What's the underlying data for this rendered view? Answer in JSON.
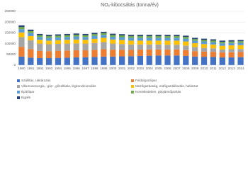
{
  "chart_data": {
    "type": "stacked_bar",
    "title": "NOₓ-kibocsátás (tonna/év)",
    "categories": [
      "1990",
      "1991",
      "1992",
      "1993",
      "1994",
      "1995",
      "1996",
      "1997",
      "1998",
      "1999",
      "2000",
      "2001",
      "2002",
      "2003",
      "2004",
      "2005",
      "2006",
      "2007",
      "2008",
      "2009",
      "2010",
      "2011",
      "2012",
      "2013",
      "2014"
    ],
    "series": [
      {
        "name": "Szállítás, raktározás",
        "color": "#4472c4",
        "values": [
          40000,
          35000,
          33000,
          33000,
          34000,
          35000,
          36000,
          37000,
          38000,
          40000,
          40000,
          41000,
          42000,
          43000,
          44000,
          45000,
          45000,
          45000,
          43000,
          40000,
          39000,
          38000,
          36000,
          36000,
          37000
        ]
      },
      {
        "name": "Feldolgozóipar",
        "color": "#ed7d31",
        "values": [
          45000,
          40000,
          33000,
          32000,
          33000,
          33000,
          33000,
          32000,
          33000,
          34000,
          32000,
          30000,
          29000,
          29000,
          29000,
          28000,
          28000,
          28000,
          27000,
          25000,
          24000,
          24000,
          23000,
          24000,
          24000
        ]
      },
      {
        "name": "Villamosenergia-, gáz-, gőzellátás, légkondicionálás",
        "color": "#a5a5a5",
        "values": [
          45000,
          40000,
          34000,
          32000,
          32000,
          32000,
          32000,
          31000,
          32000,
          33000,
          28000,
          27000,
          25000,
          24000,
          23000,
          23000,
          22000,
          22000,
          21000,
          19000,
          17000,
          16000,
          14000,
          14000,
          14000
        ]
      },
      {
        "name": "Mezőgazdaság, erdőgazdálkodás, halászat",
        "color": "#ffc000",
        "values": [
          22000,
          20000,
          18000,
          17000,
          17000,
          18000,
          18000,
          18000,
          19000,
          20000,
          19000,
          19000,
          18000,
          18000,
          18000,
          18000,
          19000,
          19000,
          19000,
          18000,
          18000,
          18000,
          17000,
          18000,
          18000
        ]
      },
      {
        "name": "Építőipar",
        "color": "#5b9bd5",
        "values": [
          15000,
          14000,
          13000,
          13000,
          13000,
          13000,
          14000,
          13000,
          14000,
          14000,
          13000,
          13000,
          13000,
          13000,
          13000,
          13000,
          13000,
          13000,
          13000,
          12000,
          12000,
          11000,
          11000,
          11000,
          11000
        ]
      },
      {
        "name": "Kereskedelem, gépjárműjavítás",
        "color": "#70ad47",
        "values": [
          10000,
          9000,
          8000,
          8000,
          8000,
          8000,
          8000,
          8000,
          8000,
          8000,
          8000,
          8000,
          8000,
          8000,
          8000,
          8000,
          8000,
          8000,
          8000,
          7000,
          7000,
          7000,
          7000,
          7000,
          7000
        ]
      },
      {
        "name": "Egyéb",
        "color": "#264478",
        "values": [
          8000,
          7000,
          6000,
          6000,
          6000,
          6000,
          6000,
          6000,
          6000,
          6000,
          6000,
          6000,
          6000,
          6000,
          6000,
          6000,
          6000,
          6000,
          6000,
          6000,
          6000,
          6000,
          6000,
          6000,
          6000
        ]
      }
    ],
    "ylim": [
      0,
      250000
    ],
    "yticks": [
      0,
      50000,
      100000,
      150000,
      200000,
      250000
    ],
    "grid": true,
    "legend": "bottom"
  }
}
